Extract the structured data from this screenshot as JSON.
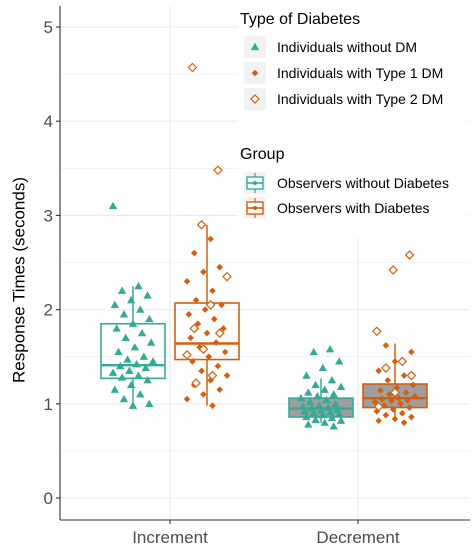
{
  "chart_data": {
    "type": "boxplot",
    "ylabel": "Response Times (seconds)",
    "xlabel": "",
    "ylim": [
      0,
      5
    ],
    "yticks": [
      0,
      1,
      2,
      3,
      4,
      5
    ],
    "categories": [
      "Increment",
      "Decrement"
    ],
    "grid": true,
    "legend_position": "top-right",
    "colors": {
      "without": "#35ab96",
      "with": "#d35f0f",
      "decrement_box_fill": "#9e9e9e",
      "panel_grid": "#ebebeb"
    },
    "legend": {
      "type_title": "Type of Diabetes",
      "type_items": [
        {
          "label": "Individuals without DM",
          "shape": "triangle",
          "series": "without"
        },
        {
          "label": "Individuals with Type 1 DM",
          "shape": "diamond-filled",
          "series": "with"
        },
        {
          "label": "Individuals with Type 2 DM",
          "shape": "diamond-open",
          "series": "with"
        }
      ],
      "group_title": "Group",
      "group_items": [
        {
          "label": "Observers without Diabetes",
          "series": "without"
        },
        {
          "label": "Observers with Diabetes",
          "series": "with"
        }
      ]
    },
    "boxes": [
      {
        "category": "Increment",
        "group": "Observers without Diabetes",
        "series": "without",
        "min": 1.0,
        "q1": 1.27,
        "median": 1.41,
        "q3": 1.85,
        "max": 2.25,
        "fill": "none"
      },
      {
        "category": "Increment",
        "group": "Observers with Diabetes",
        "series": "with",
        "min": 0.98,
        "q1": 1.47,
        "median": 1.64,
        "q3": 2.07,
        "max": 2.9,
        "fill": "none"
      },
      {
        "category": "Decrement",
        "group": "Observers without Diabetes",
        "series": "without",
        "min": 0.8,
        "q1": 0.86,
        "median": 0.95,
        "q3": 1.06,
        "max": 1.27,
        "fill": "gray"
      },
      {
        "category": "Decrement",
        "group": "Observers with Diabetes",
        "series": "with",
        "min": 0.82,
        "q1": 0.96,
        "median": 1.06,
        "q3": 1.21,
        "max": 1.64,
        "fill": "gray"
      }
    ],
    "points": [
      {
        "category": "Increment",
        "series": "without",
        "shape": "triangle",
        "values": [
          3.1,
          2.25,
          2.2,
          2.15,
          2.1,
          2.05,
          2.0,
          1.95,
          1.9,
          1.85,
          1.8,
          1.75,
          1.7,
          1.65,
          1.6,
          1.55,
          1.5,
          1.47,
          1.45,
          1.42,
          1.4,
          1.38,
          1.35,
          1.33,
          1.3,
          1.28,
          1.25,
          1.2,
          1.15,
          1.1,
          1.05,
          1.0,
          0.98
        ]
      },
      {
        "category": "Increment",
        "series": "with",
        "shape": "diamond-filled",
        "values": [
          2.75,
          2.6,
          2.45,
          2.4,
          2.3,
          2.2,
          2.1,
          2.05,
          2.0,
          1.95,
          1.9,
          1.85,
          1.8,
          1.75,
          1.7,
          1.65,
          1.6,
          1.55,
          1.5,
          1.45,
          1.4,
          1.35,
          1.3,
          1.25,
          1.2,
          1.15,
          1.1,
          1.05,
          0.98
        ]
      },
      {
        "category": "Increment",
        "series": "with",
        "shape": "diamond-open",
        "values": [
          4.57,
          3.48,
          2.9,
          2.35,
          2.05,
          1.8,
          1.75,
          1.58,
          1.52,
          1.3,
          1.22
        ]
      },
      {
        "category": "Decrement",
        "series": "without",
        "shape": "triangle",
        "values": [
          1.58,
          1.55,
          1.45,
          1.38,
          1.3,
          1.25,
          1.2,
          1.18,
          1.15,
          1.12,
          1.1,
          1.08,
          1.06,
          1.04,
          1.02,
          1.0,
          0.98,
          0.97,
          0.96,
          0.95,
          0.94,
          0.93,
          0.92,
          0.91,
          0.9,
          0.89,
          0.88,
          0.86,
          0.85,
          0.83,
          0.82,
          0.8,
          0.78,
          0.76
        ]
      },
      {
        "category": "Decrement",
        "series": "with",
        "shape": "diamond-filled",
        "values": [
          1.62,
          1.55,
          1.45,
          1.35,
          1.3,
          1.25,
          1.2,
          1.17,
          1.14,
          1.12,
          1.1,
          1.08,
          1.06,
          1.05,
          1.04,
          1.03,
          1.02,
          1.0,
          0.98,
          0.96,
          0.94,
          0.92,
          0.9,
          0.88,
          0.86,
          0.84,
          0.82,
          0.8
        ]
      },
      {
        "category": "Decrement",
        "series": "with",
        "shape": "diamond-open",
        "values": [
          2.58,
          2.42,
          1.77,
          1.45,
          1.38,
          1.3,
          1.12,
          0.97
        ]
      }
    ]
  }
}
